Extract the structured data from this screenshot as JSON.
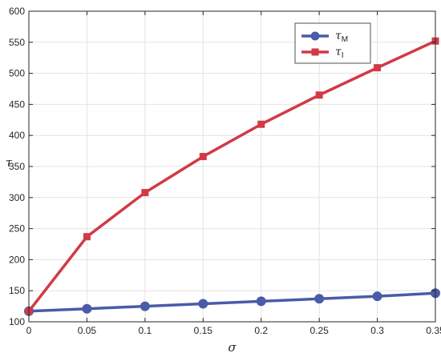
{
  "chart_data": {
    "type": "line",
    "title": "",
    "xlabel": "σ",
    "ylabel": "τ",
    "xlim": [
      0,
      0.35
    ],
    "ylim": [
      100,
      600
    ],
    "grid": true,
    "legend_position": "top-right",
    "x": [
      0,
      0.05,
      0.1,
      0.15,
      0.2,
      0.25,
      0.3,
      0.35
    ],
    "x_ticks": [
      "0",
      "0.05",
      "0.1",
      "0.15",
      "0.2",
      "0.25",
      "0.3",
      "0.35"
    ],
    "y_ticks": [
      "100",
      "150",
      "200",
      "250",
      "300",
      "350",
      "400",
      "450",
      "500",
      "550",
      "600"
    ],
    "series": [
      {
        "name": "τ",
        "subscript": "M",
        "color": "#4A5BA8",
        "marker": "circle",
        "values": [
          117,
          121,
          125,
          129,
          133,
          137,
          141,
          146
        ]
      },
      {
        "name": "τ",
        "subscript": "I",
        "color": "#D23A45",
        "marker": "square",
        "values": [
          117,
          237,
          308,
          366,
          418,
          465,
          509,
          552
        ]
      }
    ]
  }
}
